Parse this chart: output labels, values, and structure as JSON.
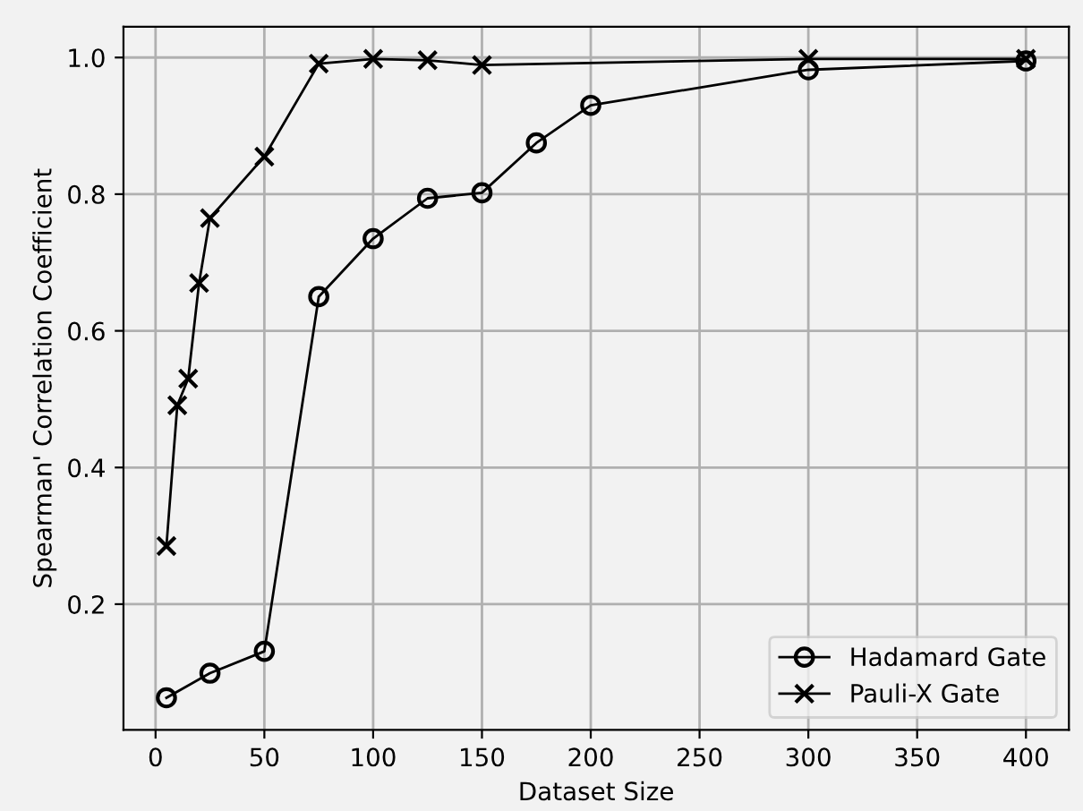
{
  "chart_data": {
    "type": "line",
    "xlabel": "Dataset Size",
    "ylabel": "Spearman' Correlation Coefficient",
    "xlim": [
      -14.75,
      419.75
    ],
    "ylim": [
      0.016,
      1.045
    ],
    "xticks": [
      0,
      50,
      100,
      150,
      200,
      250,
      300,
      350,
      400
    ],
    "yticks": [
      0.2,
      0.4,
      0.6,
      0.8,
      {
        "value": 1,
        "label": "1.0"
      }
    ],
    "grid": true,
    "legend": "lower right",
    "line_style": "solid",
    "series": [
      {
        "name": "Hadamard Gate",
        "color": "#000000",
        "marker": "circle",
        "x": [
          5,
          25,
          50,
          75,
          100,
          125,
          150,
          175,
          200,
          300,
          400
        ],
        "values": [
          0.063,
          0.099,
          0.131,
          0.65,
          0.735,
          0.794,
          0.802,
          0.875,
          0.93,
          0.982,
          0.995
        ]
      },
      {
        "name": "Pauli-X Gate",
        "color": "#000000",
        "marker": "cross",
        "x": [
          5,
          10,
          15,
          20,
          25,
          50,
          75,
          100,
          125,
          150,
          300,
          400
        ],
        "values": [
          0.285,
          0.491,
          0.53,
          0.67,
          0.765,
          0.855,
          0.991,
          0.998,
          0.996,
          0.989,
          0.998,
          0.998
        ]
      }
    ]
  }
}
